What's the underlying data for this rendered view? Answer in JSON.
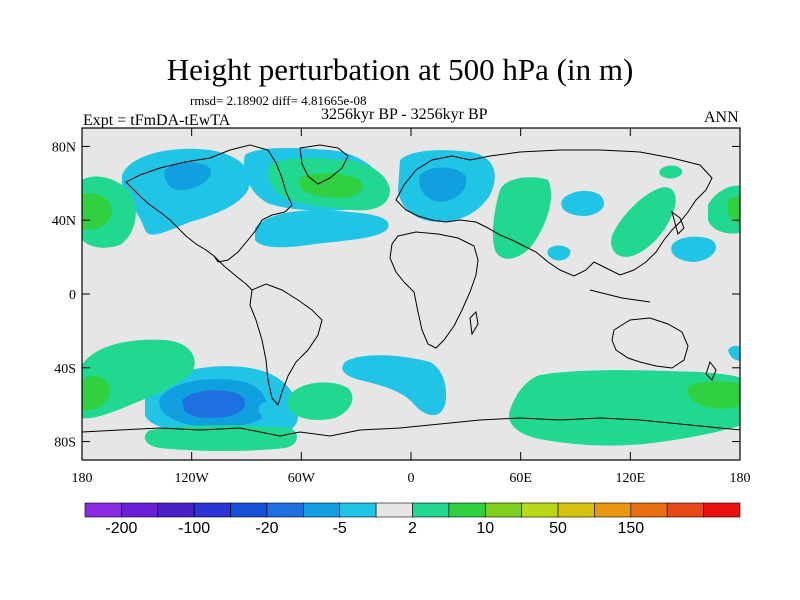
{
  "chart_data": {
    "type": "contour-map",
    "title": "Height perturbation at 500 hPa (in m)",
    "stats_text": "rmsd= 2.18902 diff= 4.81665e-08",
    "left_string": "Expt = tFmDA-tEwTA",
    "center_string": "3256kyr BP - 3256kyr BP",
    "right_string": "ANN",
    "projection": "cylindrical-equidistant",
    "lon_range": [
      -180,
      180
    ],
    "lat_range": [
      -90,
      90
    ],
    "x_ticks": [
      {
        "value": -180,
        "label": "180"
      },
      {
        "value": -120,
        "label": "120W"
      },
      {
        "value": -60,
        "label": "60W"
      },
      {
        "value": 0,
        "label": "0"
      },
      {
        "value": 60,
        "label": "60E"
      },
      {
        "value": 120,
        "label": "120E"
      },
      {
        "value": 180,
        "label": "180"
      }
    ],
    "y_ticks": [
      {
        "value": 80,
        "label": "80N"
      },
      {
        "value": 40,
        "label": "40N"
      },
      {
        "value": 0,
        "label": "0"
      },
      {
        "value": -40,
        "label": "40S"
      },
      {
        "value": -80,
        "label": "80S"
      }
    ],
    "colorbar": {
      "colors": [
        "#8a2be2",
        "#6a1ed8",
        "#4a20c8",
        "#2a34d8",
        "#1450d8",
        "#1e70e0",
        "#10a0e0",
        "#20c4e4",
        "#e6e6e6",
        "#20d890",
        "#30d040",
        "#80d020",
        "#b8d818",
        "#d8c010",
        "#e89810",
        "#e87010",
        "#e84818",
        "#e81010"
      ],
      "labels": [
        "-200",
        "-100",
        "-20",
        "-5",
        "2",
        "10",
        "50",
        "150"
      ]
    },
    "regions": [
      {
        "sign": "negative",
        "level": -5,
        "center_lon": -118,
        "center_lat": -58,
        "core_level": -20
      },
      {
        "sign": "negative",
        "level": -5,
        "center_lon": -92,
        "center_lat": 62
      },
      {
        "sign": "negative",
        "level": -5,
        "center_lon": -55,
        "center_lat": 37
      },
      {
        "sign": "negative",
        "level": -5,
        "center_lon": 10,
        "center_lat": 57
      },
      {
        "sign": "negative",
        "level": -5,
        "center_lon": -2,
        "center_lat": -40
      },
      {
        "sign": "negative",
        "level": -5,
        "center_lon": 90,
        "center_lat": 47
      },
      {
        "sign": "negative",
        "level": -5,
        "center_lon": 155,
        "center_lat": 27
      },
      {
        "sign": "negative",
        "level": -5,
        "center_lon": -30,
        "center_lat": -58
      },
      {
        "sign": "positive",
        "level": 2,
        "center_lon": -140,
        "center_lat": -45
      },
      {
        "sign": "positive",
        "level": 2,
        "center_lon": -170,
        "center_lat": 47
      },
      {
        "sign": "positive",
        "level": 2,
        "center_lon": -58,
        "center_lat": 58,
        "core_level": 10
      },
      {
        "sign": "positive",
        "level": 2,
        "center_lon": 60,
        "center_lat": 45
      },
      {
        "sign": "positive",
        "level": 2,
        "center_lon": 128,
        "center_lat": 45
      },
      {
        "sign": "positive",
        "level": 2,
        "center_lon": 172,
        "center_lat": 45
      },
      {
        "sign": "positive",
        "level": 2,
        "center_lon": 100,
        "center_lat": -60
      },
      {
        "sign": "positive",
        "level": 2,
        "center_lon": -48,
        "center_lat": -52
      },
      {
        "sign": "positive",
        "level": 2,
        "center_lon": 175,
        "center_lat": -50,
        "core_level": 10
      }
    ]
  }
}
